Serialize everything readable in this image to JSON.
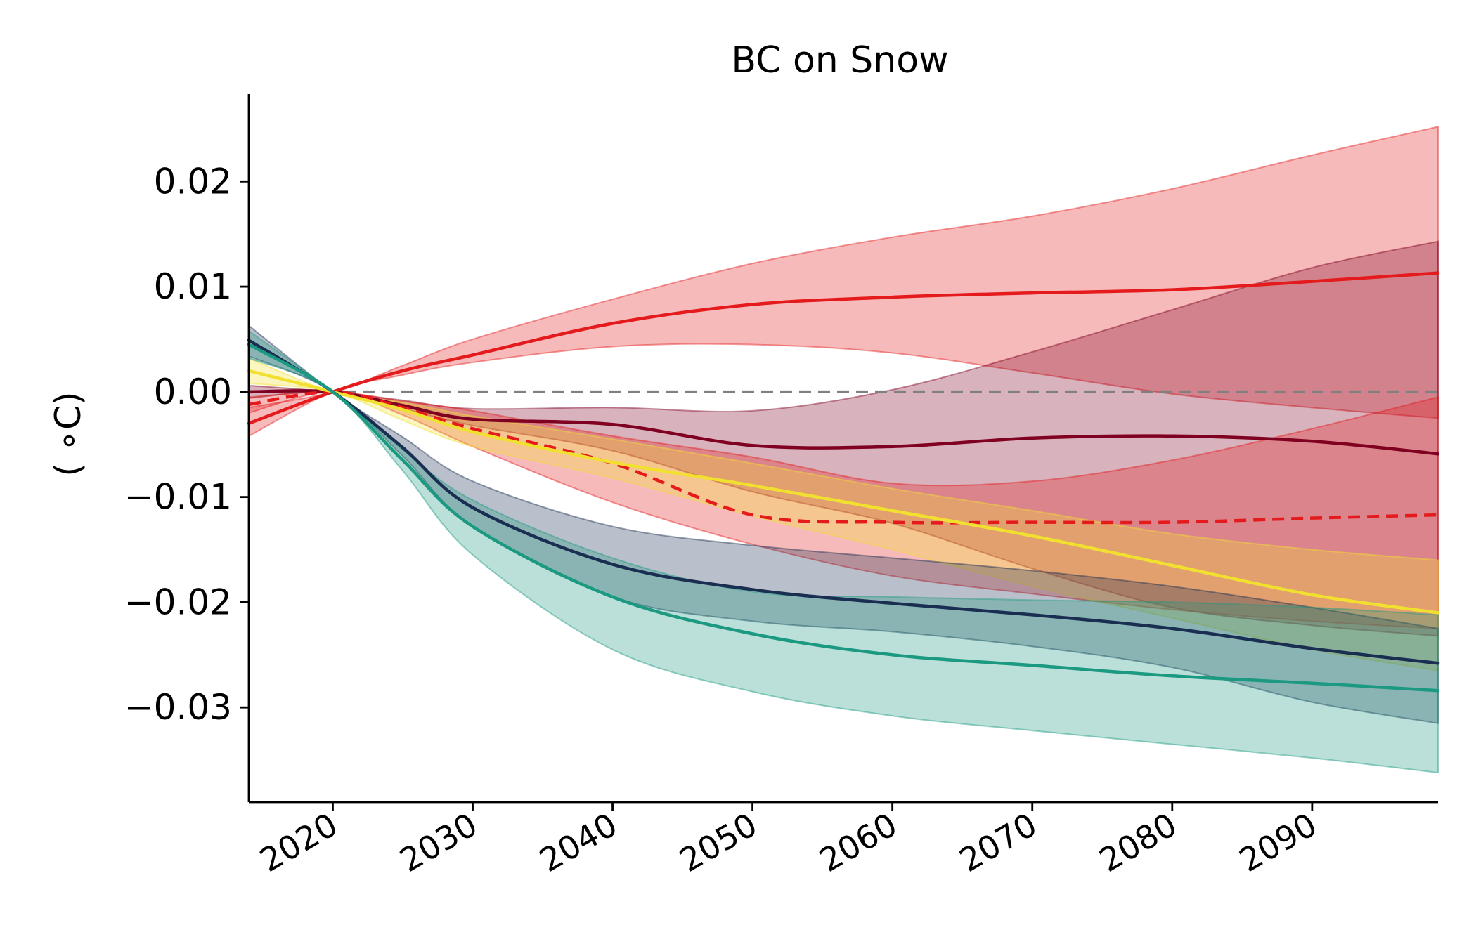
{
  "chart_data": {
    "type": "line",
    "title": "BC on Snow",
    "xlabel": "",
    "ylabel": "( $^\\circ$C)",
    "ylabel_display": "( ∘C)",
    "xlim": [
      2014,
      2099
    ],
    "ylim": [
      -0.039,
      0.0283
    ],
    "x_ticks": [
      2020,
      2030,
      2040,
      2050,
      2060,
      2070,
      2080,
      2090
    ],
    "x_tick_labels": [
      "2020",
      "2030",
      "2040",
      "2050",
      "2060",
      "2070",
      "2080",
      "2090"
    ],
    "y_ticks": [
      0.02,
      0.01,
      0.0,
      -0.01,
      -0.02,
      -0.03
    ],
    "y_tick_labels": [
      "0.02",
      "0.01",
      "0.00",
      "−0.01",
      "−0.02",
      "−0.03"
    ],
    "grid": false,
    "legend": "none",
    "reference_line": {
      "y": 0,
      "color": "#808080",
      "style": "dashed"
    },
    "x": [
      2014,
      2020,
      2025,
      2030,
      2040,
      2050,
      2060,
      2070,
      2080,
      2090,
      2099
    ],
    "series": [
      {
        "color": "#e41a1c",
        "style": "solid",
        "values": [
          -0.003,
          0,
          0.002,
          0.0035,
          0.0065,
          0.0083,
          0.009,
          0.0094,
          0.0097,
          0.0105,
          0.0113
        ],
        "band_upper": [
          -0.0015,
          0,
          0.0025,
          0.005,
          0.0088,
          0.0122,
          0.0147,
          0.0167,
          0.0193,
          0.0225,
          0.0252
        ],
        "band_lower": [
          -0.0042,
          0,
          0.0016,
          0.0028,
          0.0043,
          0.0045,
          0.0037,
          0.0018,
          -0.0002,
          -0.0015,
          -0.0025
        ]
      },
      {
        "color": "#7f0020",
        "style": "solid",
        "values": [
          0,
          0,
          -0.0013,
          -0.0026,
          -0.0031,
          -0.0051,
          -0.0052,
          -0.0044,
          -0.0042,
          -0.0047,
          -0.0059
        ],
        "band_upper": [
          0.0006,
          0,
          -0.0008,
          -0.0016,
          -0.0015,
          -0.0018,
          0.0002,
          0.0038,
          0.0078,
          0.0118,
          0.0143
        ],
        "band_lower": [
          -0.0006,
          0,
          -0.0016,
          -0.0032,
          -0.0056,
          -0.0095,
          -0.0125,
          -0.0168,
          -0.0205,
          -0.0222,
          -0.0232
        ]
      },
      {
        "color": "#e41a1c",
        "style": "dashed",
        "values": [
          -0.0012,
          0,
          -0.0015,
          -0.0035,
          -0.0068,
          -0.0117,
          -0.0124,
          -0.0124,
          -0.0124,
          -0.012,
          -0.0117
        ],
        "band_upper": [
          -0.0005,
          0,
          -0.0009,
          -0.0018,
          -0.0042,
          -0.0062,
          -0.0087,
          -0.0085,
          -0.0065,
          -0.0035,
          -0.0005
        ],
        "band_lower": [
          -0.002,
          0,
          -0.0022,
          -0.0052,
          -0.0105,
          -0.0145,
          -0.0175,
          -0.0192,
          -0.0207,
          -0.0218,
          -0.0225
        ]
      },
      {
        "color": "#f2e030",
        "style": "solid",
        "values": [
          0.002,
          0,
          -0.0017,
          -0.0038,
          -0.0067,
          -0.0089,
          -0.0113,
          -0.0137,
          -0.0165,
          -0.0193,
          -0.021
        ],
        "band_upper": [
          0.0032,
          0,
          -0.001,
          -0.0023,
          -0.0045,
          -0.0068,
          -0.0092,
          -0.0113,
          -0.0135,
          -0.015,
          -0.016
        ],
        "band_lower": [
          0.0008,
          0,
          -0.0027,
          -0.0052,
          -0.0082,
          -0.0118,
          -0.015,
          -0.0185,
          -0.0215,
          -0.0245,
          -0.0265
        ]
      },
      {
        "color": "#1a2e52",
        "style": "solid",
        "values": [
          0.0049,
          0,
          -0.0053,
          -0.011,
          -0.0164,
          -0.0188,
          -0.0201,
          -0.0212,
          -0.0225,
          -0.0244,
          -0.0258
        ],
        "band_upper": [
          0.0063,
          0,
          -0.0043,
          -0.0085,
          -0.0128,
          -0.0146,
          -0.0158,
          -0.017,
          -0.0185,
          -0.0205,
          -0.0225
        ],
        "band_lower": [
          0.0034,
          0,
          -0.0061,
          -0.0128,
          -0.0195,
          -0.0218,
          -0.0228,
          -0.0242,
          -0.0262,
          -0.0295,
          -0.0315
        ]
      },
      {
        "color": "#1b9981",
        "style": "solid",
        "values": [
          0.0045,
          0,
          -0.0065,
          -0.0128,
          -0.0195,
          -0.023,
          -0.025,
          -0.026,
          -0.027,
          -0.0277,
          -0.0284
        ],
        "band_upper": [
          0.0058,
          0,
          -0.0055,
          -0.0103,
          -0.0158,
          -0.019,
          -0.0195,
          -0.0198,
          -0.02,
          -0.0205,
          -0.0212
        ],
        "band_lower": [
          0.0032,
          0,
          -0.0075,
          -0.0155,
          -0.0245,
          -0.0285,
          -0.0308,
          -0.0322,
          -0.0335,
          -0.0348,
          -0.0362
        ]
      }
    ]
  }
}
